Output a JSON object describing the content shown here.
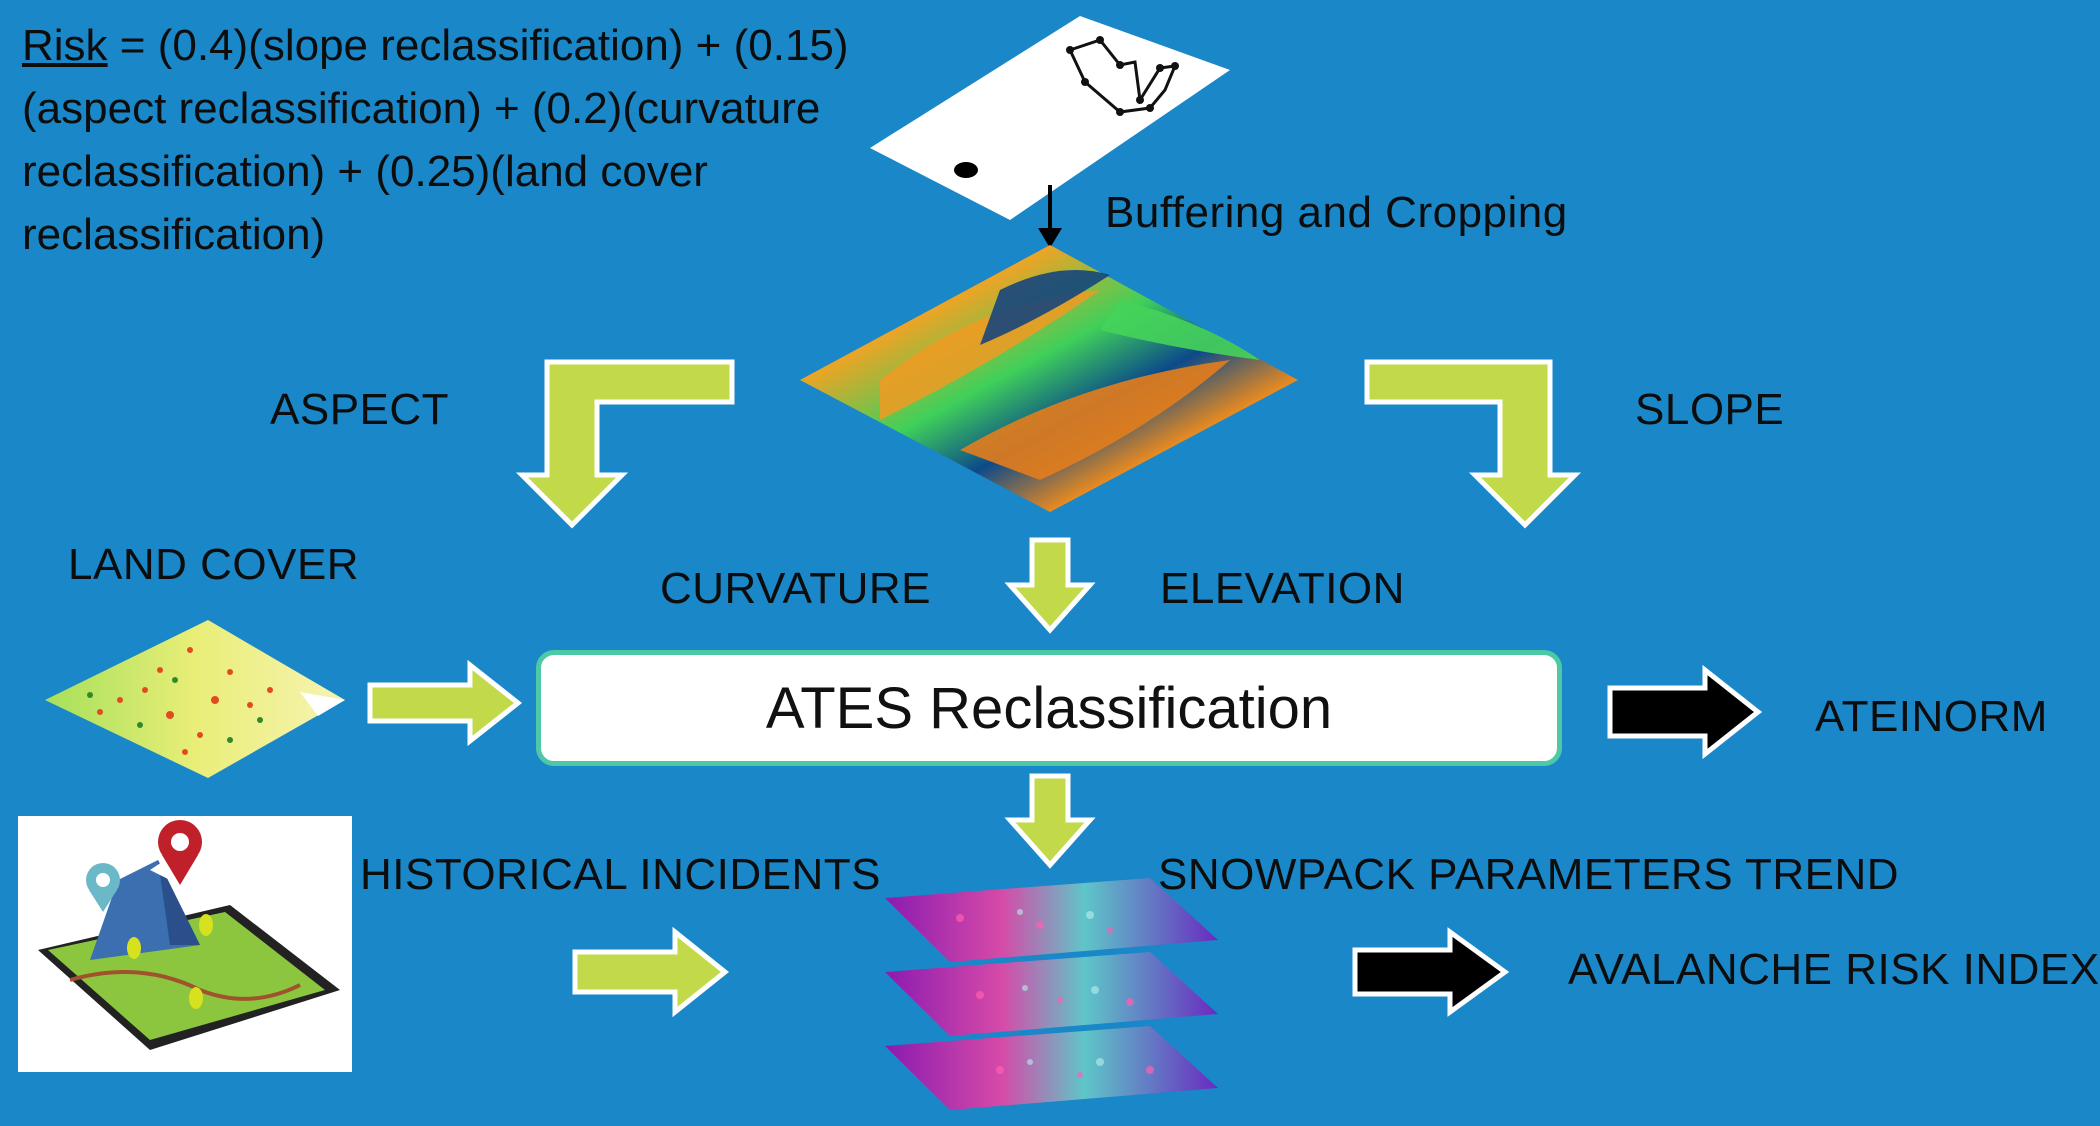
{
  "formula": {
    "risk_word": "Risk",
    "expression": " = (0.4)(slope reclassification) + (0.15) (aspect reclassification) + (0.2)(curvature reclassification) + (0.25)(land cover reclassification)"
  },
  "labels": {
    "buffering": "Buffering and Cropping",
    "aspect": "ASPECT",
    "slope": "SLOPE",
    "land_cover": "LAND COVER",
    "curvature": "CURVATURE",
    "elevation": "ELEVATION",
    "ates_box": "ATES Reclassification",
    "ateinorm": "ATEINORM",
    "historical_incidents": "HISTORICAL INCIDENTS",
    "snowpack_trend": "SNOWPACK PARAMETERS TREND",
    "avalanche_index": "AVALANCHE RISK INDEX"
  },
  "colors": {
    "background": "#1a87c8",
    "green_arrow": "#c2d94a",
    "black_arrow": "#000000",
    "box_border": "#4ec9a6"
  }
}
